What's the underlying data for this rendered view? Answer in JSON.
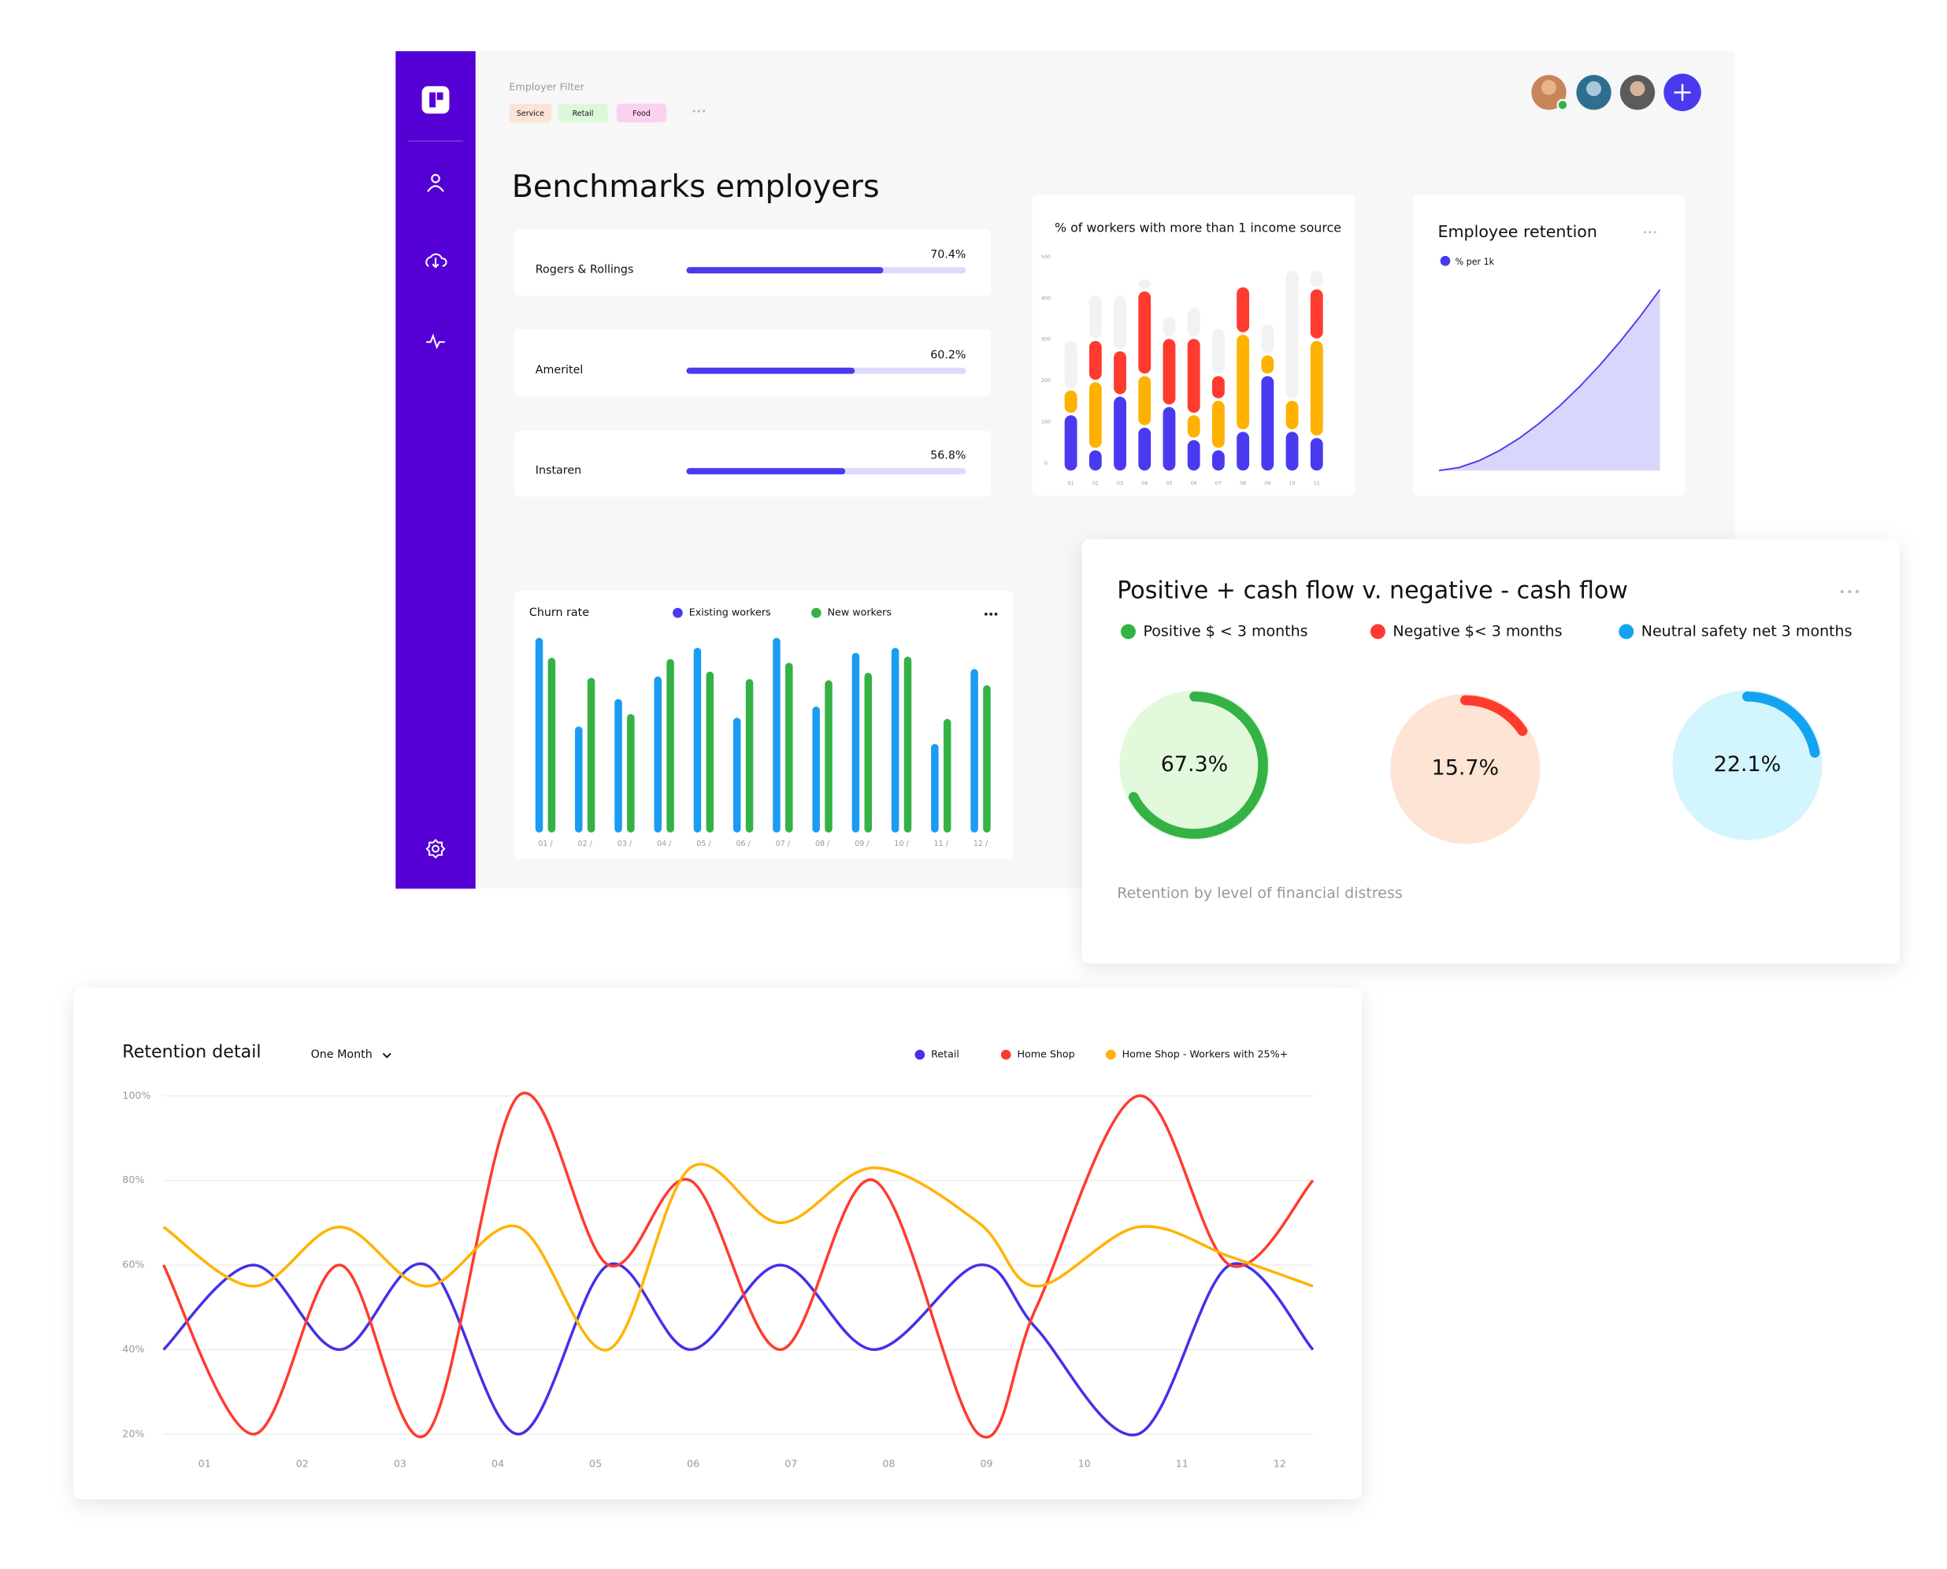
{
  "filter": {
    "label": "Employer Filter",
    "tags": [
      "Service",
      "Retail",
      "Food"
    ]
  },
  "title": "Benchmarks employers",
  "benchmarks": {
    "names": [
      "Rogers & Rollings",
      "Ameritel",
      "Instaren"
    ],
    "values": [
      70.4,
      60.2,
      56.8
    ],
    "value_labels": [
      "70.4%",
      "60.2%",
      "56.8%"
    ],
    "xlim": [
      0,
      100
    ],
    "color": "#4a3aef",
    "track_color": "#dddafa"
  },
  "income_chart": {
    "type": "bar",
    "title": "% of workers with more than 1 income source",
    "categories": [
      "01",
      "02",
      "03",
      "04",
      "05",
      "06",
      "07",
      "08",
      "09",
      "10",
      "11"
    ],
    "series": [
      {
        "color": "#4a3aef",
        "values": [
          140,
          55,
          185,
          110,
          160,
          80,
          55,
          100,
          235,
          100,
          85
        ]
      },
      {
        "color": "#ffb100",
        "values": [
          60,
          165,
          0,
          125,
          0,
          60,
          120,
          235,
          50,
          75,
          235
        ]
      },
      {
        "color": "#ff3b2f",
        "values": [
          0,
          100,
          110,
          205,
          165,
          185,
          60,
          115,
          0,
          0,
          125
        ]
      },
      {
        "color": "#f2f2f2",
        "values": [
          120,
          110,
          135,
          30,
          55,
          75,
          115,
          0,
          75,
          315,
          45
        ]
      }
    ],
    "ylim": [
      0,
      520
    ],
    "yticks": [
      0,
      100,
      200,
      300,
      400,
      500
    ]
  },
  "retention_chart": {
    "type": "area",
    "title": "Employee retention",
    "legend": "% per 1k",
    "color": "#4a3aef",
    "fill": "#d9d6fb",
    "values": [
      0,
      1.7,
      5.5,
      11,
      17.9,
      26.2,
      35.7,
      46.4,
      58.2,
      71.1,
      85,
      100
    ],
    "ylim": [
      0,
      100
    ]
  },
  "churn_chart": {
    "type": "bar",
    "title": "Churn rate",
    "categories": [
      "01 /",
      "02 /",
      "03 /",
      "04 /",
      "05 /",
      "06 /",
      "07 /",
      "08 /",
      "09 /",
      "10 /",
      "11 /",
      "12 /"
    ],
    "series": [
      {
        "name": "Existing workers",
        "color": "#1a9cf2",
        "legend_color": "#4a3aef",
        "values": [
          156,
          85,
          107,
          125,
          148,
          92,
          156,
          101,
          144,
          148,
          71,
          131
        ]
      },
      {
        "name": "New workers",
        "color": "#35b245",
        "legend_color": "#35b245",
        "values": [
          140,
          124,
          95,
          139,
          129,
          123,
          136,
          122,
          128,
          141,
          91,
          118
        ]
      }
    ],
    "ylim": [
      0,
      160
    ]
  },
  "cash_flow": {
    "title": "Positive + cash flow v. negative - cash flow",
    "series": [
      {
        "name": "Positive $ < 3 months",
        "color": "#35b245",
        "background": "#e3f9dc",
        "value": 67.3,
        "value_label": "67.3%"
      },
      {
        "name": "Negative $< 3 months",
        "color": "#ff3b2f",
        "background": "#fde4d4",
        "value": 15.7,
        "value_label": "15.7%"
      },
      {
        "name": "Neutral safety net 3 months",
        "color": "#14a3f0",
        "background": "#d3f5fd",
        "value": 22.1,
        "value_label": "22.1%"
      }
    ],
    "caption": "Retention by level of financial distress"
  },
  "retention_detail": {
    "type": "line",
    "title": "Retention detail",
    "period": "One Month",
    "x": [
      0.58,
      1.5,
      2.38,
      3.27,
      4.21,
      5.13,
      5.97,
      6.89,
      7.85,
      8.92,
      9.51,
      10.55,
      11.49,
      12.34
    ],
    "xlim": [
      0.58,
      12.34
    ],
    "xticks": [
      {
        "value": 1,
        "label": "01"
      },
      {
        "value": 2,
        "label": "02"
      },
      {
        "value": 3,
        "label": "03"
      },
      {
        "value": 4,
        "label": "04"
      },
      {
        "value": 5,
        "label": "05"
      },
      {
        "value": 6,
        "label": "06"
      },
      {
        "value": 7,
        "label": "07"
      },
      {
        "value": 8,
        "label": "08"
      },
      {
        "value": 9,
        "label": "09"
      },
      {
        "value": 10,
        "label": "10"
      },
      {
        "value": 11,
        "label": "11"
      },
      {
        "value": 12,
        "label": "12"
      }
    ],
    "ylim": [
      20,
      100
    ],
    "yticks": [
      {
        "value": 20,
        "label": "20%"
      },
      {
        "value": 40,
        "label": "40%"
      },
      {
        "value": 60,
        "label": "60%"
      },
      {
        "value": 80,
        "label": "80%"
      },
      {
        "value": 100,
        "label": "100%"
      }
    ],
    "grid": true,
    "series": [
      {
        "name": "Retail",
        "color": "#4431e8",
        "values": [
          40,
          60,
          40,
          60,
          20,
          60,
          40,
          60,
          40,
          60,
          45,
          20,
          60,
          40
        ]
      },
      {
        "name": "Home Shop",
        "color": "#ff3b2f",
        "values": [
          60,
          20,
          60,
          20,
          100,
          60,
          80,
          40,
          80,
          20,
          50,
          100,
          60,
          80
        ]
      },
      {
        "name": "Home Shop - Workers with 25%+",
        "color": "#ffb300",
        "values": [
          69,
          55,
          69,
          55,
          69,
          40,
          83,
          70,
          83,
          70,
          55,
          69,
          62,
          55
        ]
      }
    ]
  }
}
